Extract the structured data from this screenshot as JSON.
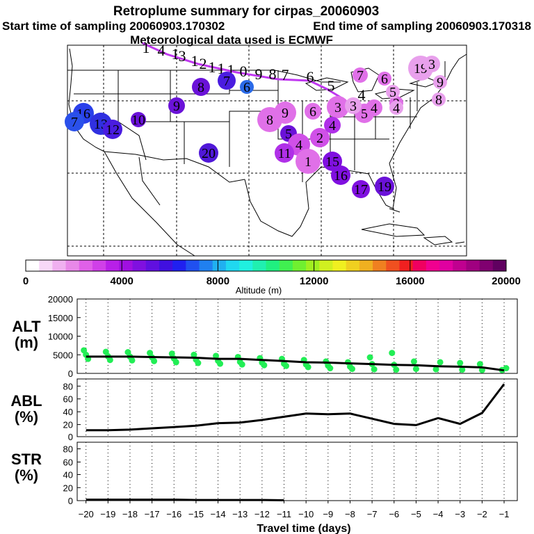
{
  "titles": {
    "main": "Retroplume summary for cirpas_20060903",
    "start": "Start time of sampling 20060903.170302",
    "end": "End time of sampling 20060903.170318",
    "met": "Meteorological data used is ECMWF"
  },
  "colorbar": {
    "label": "Altitude (m)",
    "ticks": [
      "0",
      "4000",
      "8000",
      "12000",
      "16000",
      "20000"
    ],
    "colors": [
      "#ffffff",
      "#f8d8f8",
      "#f0b0f0",
      "#e888e8",
      "#e060e8",
      "#d040e8",
      "#b820e8",
      "#a010e0",
      "#8010e0",
      "#6010e0",
      "#4010e0",
      "#2020f0",
      "#2050f0",
      "#2080f0",
      "#20b0f0",
      "#20d8f0",
      "#20f0e0",
      "#20f0b0",
      "#20f080",
      "#40f050",
      "#70f030",
      "#a0f020",
      "#d0f020",
      "#f0f020",
      "#f0d020",
      "#f0b020",
      "#f08020",
      "#f05020",
      "#f02020",
      "#f00060",
      "#f00090",
      "#e000a0",
      "#c00090",
      "#a00080",
      "#800070",
      "#600060"
    ]
  },
  "map": {
    "plume_labels": [
      {
        "n": "1",
        "color": "#b05cf2",
        "size": 22
      },
      {
        "n": "4",
        "color": "#b05cf2",
        "size": 22
      },
      {
        "n": "1",
        "color": "#b05cf2",
        "size": 22
      },
      {
        "n": "3",
        "color": "#b05cf2",
        "size": 22
      },
      {
        "n": "1",
        "color": "#b05cf2",
        "size": 22
      },
      {
        "n": "2",
        "color": "#b05cf2",
        "size": 22
      },
      {
        "n": "1",
        "color": "#b05cf2",
        "size": 22
      },
      {
        "n": "1",
        "color": "#b05cf2",
        "size": 22
      },
      {
        "n": "1",
        "color": "#b05cf2",
        "size": 22
      },
      {
        "n": "0",
        "color": "#b05cf2",
        "size": 22
      },
      {
        "n": "9",
        "color": "#b05cf2",
        "size": 22
      },
      {
        "n": "8",
        "color": "#b05cf2",
        "size": 22
      },
      {
        "n": "7",
        "color": "#b05cf2",
        "size": 22
      },
      {
        "n": "6",
        "color": "#b05cf2",
        "size": 22
      },
      {
        "n": "5",
        "color": "#b05cf2",
        "size": 22
      },
      {
        "n": "4",
        "color": "#b05cf2",
        "size": 22
      }
    ],
    "clusters": [
      {
        "n": "8",
        "color": "#6a12d8"
      },
      {
        "n": "7",
        "color": "#4a1ce0"
      },
      {
        "n": "6",
        "color": "#2a6ae8"
      },
      {
        "n": "9",
        "color": "#6a12d8"
      },
      {
        "n": "10",
        "color": "#6a12d8"
      },
      {
        "n": "20",
        "color": "#5018d8"
      },
      {
        "n": "16",
        "color": "#2a40ea"
      },
      {
        "n": "7",
        "color": "#2a50ea"
      },
      {
        "n": "13",
        "color": "#3030e0"
      },
      {
        "n": "12",
        "color": "#4a1ce0"
      },
      {
        "n": "8",
        "color": "#e070e8"
      },
      {
        "n": "9",
        "color": "#e070e8"
      },
      {
        "n": "6",
        "color": "#e070e8"
      },
      {
        "n": "3",
        "color": "#e070e8"
      },
      {
        "n": "2",
        "color": "#d050e8"
      },
      {
        "n": "4",
        "color": "#b030e8"
      },
      {
        "n": "5",
        "color": "#6a12d8"
      },
      {
        "n": "4",
        "color": "#d050e8"
      },
      {
        "n": "11",
        "color": "#b030e8"
      },
      {
        "n": "1",
        "color": "#e070e8"
      },
      {
        "n": "15",
        "color": "#8010e0"
      },
      {
        "n": "16",
        "color": "#8010e0"
      },
      {
        "n": "17",
        "color": "#8010e0"
      },
      {
        "n": "19",
        "color": "#6a12d8"
      },
      {
        "n": "7",
        "color": "#e070e8"
      },
      {
        "n": "6",
        "color": "#e070e8"
      },
      {
        "n": "5",
        "color": "#e070e8"
      },
      {
        "n": "4",
        "color": "#e070e8"
      },
      {
        "n": "2",
        "color": "#e070e8"
      },
      {
        "n": "19",
        "color": "#e8a0ec"
      },
      {
        "n": "3",
        "color": "#e8a0ec"
      },
      {
        "n": "9",
        "color": "#e8a0ec"
      },
      {
        "n": "8",
        "color": "#e8a0ec"
      },
      {
        "n": "5",
        "color": "#e8a0ec"
      },
      {
        "n": "3",
        "color": "#e8a0ec"
      },
      {
        "n": "4",
        "color": "#e8a0ec"
      }
    ]
  },
  "chart_data": [
    {
      "type": "scatter",
      "ylabel": "ALT (m)",
      "ylim": [
        0,
        20000
      ],
      "yticks": [
        "20000",
        "15000",
        "10000",
        "5000",
        "0"
      ],
      "line_color": "#000000",
      "point_color": "#22ee55",
      "line": {
        "x": [
          -20,
          -19,
          -18,
          -17,
          -16,
          -15,
          -14,
          -13,
          -12,
          -11,
          -10,
          -9,
          -8,
          -7,
          -6,
          -5,
          -4,
          -3,
          -2,
          -1
        ],
        "y": [
          4500,
          4500,
          4500,
          4400,
          4300,
          4200,
          3900,
          3900,
          3600,
          3300,
          3000,
          2900,
          2700,
          2500,
          2300,
          2200,
          1900,
          1800,
          1600,
          800
        ]
      },
      "points": {
        "x": [
          -20,
          -20,
          -20,
          -19,
          -19,
          -19,
          -18,
          -18,
          -18,
          -17,
          -17,
          -17,
          -16,
          -16,
          -16,
          -15,
          -15,
          -15,
          -14,
          -14,
          -14,
          -13,
          -13,
          -13,
          -12,
          -12,
          -12,
          -11,
          -11,
          -11,
          -10,
          -10,
          -10,
          -9,
          -9,
          -9,
          -8,
          -8,
          -8,
          -7,
          -7,
          -7,
          -6,
          -6,
          -6,
          -5,
          -5,
          -4,
          -4,
          -3,
          -3,
          -2,
          -2,
          -1,
          -1
        ],
        "y": [
          6200,
          5000,
          3900,
          5800,
          4600,
          3600,
          5700,
          4500,
          3500,
          5500,
          4300,
          3300,
          5300,
          4000,
          3000,
          5000,
          3700,
          2800,
          4700,
          3400,
          2600,
          4400,
          3100,
          2400,
          4100,
          2900,
          2200,
          3900,
          2600,
          2000,
          3600,
          2400,
          1700,
          3200,
          2100,
          1400,
          3000,
          1800,
          1200,
          4300,
          2500,
          1100,
          5500,
          2300,
          1000,
          3200,
          1200,
          3000,
          1100,
          2800,
          1000,
          2500,
          900,
          1400,
          900
        ]
      }
    },
    {
      "type": "line",
      "ylabel": "ABL (%)",
      "ylim": [
        0,
        90
      ],
      "yticks": [
        "80",
        "60",
        "40",
        "20",
        "0"
      ],
      "x": [
        -20,
        -19,
        -18,
        -17,
        -16,
        -15,
        -14,
        -13,
        -12,
        -11,
        -10,
        -9,
        -8,
        -7,
        -6,
        -5,
        -4,
        -3,
        -2,
        -1
      ],
      "y": [
        10,
        10,
        11,
        13,
        15,
        17,
        21,
        22,
        26,
        31,
        36,
        35,
        36,
        28,
        20,
        18,
        29,
        20,
        37,
        82
      ]
    },
    {
      "type": "line",
      "ylabel": "STR (%)",
      "ylim": [
        0,
        90
      ],
      "yticks": [
        "80",
        "60",
        "40",
        "20",
        "0"
      ],
      "xlabel": "Travel time (days)",
      "xticks": [
        "-20",
        "-19",
        "-18",
        "-17",
        "-16",
        "-15",
        "-14",
        "-13",
        "-12",
        "-11",
        "-10",
        "-9",
        "-8",
        "-7",
        "-6",
        "-5",
        "-4",
        "-3",
        "-2",
        "-1"
      ],
      "x": [
        -20,
        -19,
        -18,
        -17,
        -16,
        -15,
        -14,
        -13,
        -12,
        -11
      ],
      "y": [
        1.5,
        1.5,
        1.5,
        1.5,
        1.5,
        1,
        1,
        1,
        1,
        0.5
      ]
    }
  ]
}
